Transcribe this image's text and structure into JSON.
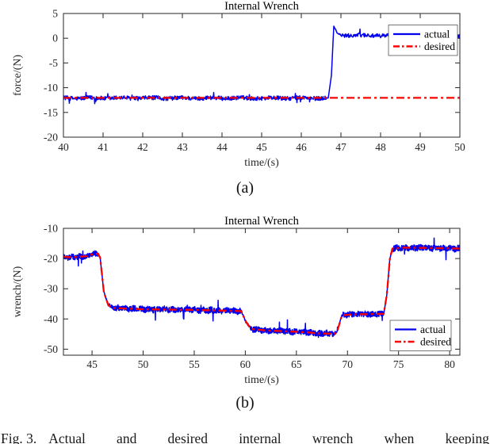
{
  "page": {
    "caption_label": "Fig. 3.",
    "caption_text": "Actual and desired internal wrench when keeping",
    "sublabel_a": "(a)",
    "sublabel_b": "(b)"
  },
  "colors": {
    "actual": "#0000EE",
    "desired": "#FF0000",
    "axis": "#262626",
    "title_text": "#000000",
    "background": "#FFFFFF"
  },
  "chart_data": [
    {
      "type": "line",
      "title": "Internal Wrench",
      "xlabel": "time/(s)",
      "ylabel": "force/(N)",
      "xlim": [
        40,
        50
      ],
      "ylim": [
        -20,
        5
      ],
      "xticks": [
        40,
        41,
        42,
        43,
        44,
        45,
        46,
        47,
        48,
        49,
        50
      ],
      "yticks": [
        5,
        0,
        -5,
        -10,
        -15,
        -20
      ],
      "grid": false,
      "legend": {
        "position": "top-right",
        "entries": [
          {
            "label": "actual",
            "color": "#0000EE",
            "style": "solid"
          },
          {
            "label": "desired",
            "color": "#FF0000",
            "style": "dash-dot"
          }
        ]
      },
      "series": [
        {
          "name": "actual",
          "color": "#0000EE",
          "style": "solid",
          "noise": 0.42,
          "seed": 12345,
          "profile": [
            [
              40,
              -12.1
            ],
            [
              46.68,
              -12.1
            ],
            [
              46.76,
              -7.5
            ],
            [
              46.82,
              2.45
            ],
            [
              46.9,
              1.1
            ],
            [
              47.0,
              0.6
            ],
            [
              48.5,
              0.5
            ],
            [
              50,
              0.4
            ]
          ]
        },
        {
          "name": "desired",
          "color": "#FF0000",
          "style": "dash-dot",
          "noise": 0,
          "seed": 1,
          "profile": [
            [
              40,
              -12.05
            ],
            [
              50,
              -12.05
            ]
          ]
        }
      ]
    },
    {
      "type": "line",
      "title": "Internal Wrench",
      "xlabel": "time/(s)",
      "ylabel": "wrench/(N)",
      "xlim": [
        42.2,
        81
      ],
      "ylim": [
        -52,
        -10
      ],
      "xticks": [
        45,
        50,
        55,
        60,
        65,
        70,
        75,
        80
      ],
      "yticks": [
        -10,
        -20,
        -30,
        -40,
        -50
      ],
      "grid": false,
      "legend": {
        "position": "bottom-right",
        "entries": [
          {
            "label": "actual",
            "color": "#0000EE",
            "style": "solid"
          },
          {
            "label": "desired",
            "color": "#FF0000",
            "style": "dash-dot"
          }
        ]
      },
      "series": [
        {
          "name": "actual",
          "color": "#0000EE",
          "style": "solid",
          "noise": 1.0,
          "seed": 67890,
          "profile": [
            [
              42.2,
              -19.4
            ],
            [
              43,
              -19.6
            ],
            [
              44.5,
              -19.2
            ],
            [
              45.15,
              -18.5
            ],
            [
              45.6,
              -18.4
            ],
            [
              45.8,
              -19.8
            ],
            [
              46.15,
              -31
            ],
            [
              46.6,
              -35.5
            ],
            [
              47.2,
              -36.4
            ],
            [
              50,
              -36.8
            ],
            [
              55,
              -37.0
            ],
            [
              59.6,
              -37.4
            ],
            [
              60.05,
              -40.8
            ],
            [
              60.55,
              -43.3
            ],
            [
              62,
              -43.8
            ],
            [
              64,
              -44.1
            ],
            [
              66,
              -44.4
            ],
            [
              67.3,
              -44.8
            ],
            [
              68.8,
              -44.9
            ],
            [
              69.05,
              -43.5
            ],
            [
              69.45,
              -38.8
            ],
            [
              70.5,
              -38.5
            ],
            [
              72,
              -38.4
            ],
            [
              73.55,
              -38.3
            ],
            [
              73.85,
              -32
            ],
            [
              74.15,
              -20
            ],
            [
              74.4,
              -16.7
            ],
            [
              75.5,
              -16.4
            ],
            [
              78,
              -16.5
            ],
            [
              81,
              -16.7
            ]
          ]
        },
        {
          "name": "desired",
          "color": "#FF0000",
          "style": "dash-dot",
          "noise": 0,
          "seed": 2,
          "profile": [
            [
              42.2,
              -19.4
            ],
            [
              43,
              -19.6
            ],
            [
              44.5,
              -19.2
            ],
            [
              45.15,
              -18.5
            ],
            [
              45.6,
              -18.4
            ],
            [
              45.8,
              -19.8
            ],
            [
              46.15,
              -31
            ],
            [
              46.6,
              -35.5
            ],
            [
              47.2,
              -36.4
            ],
            [
              50,
              -36.8
            ],
            [
              55,
              -37.0
            ],
            [
              59.6,
              -37.4
            ],
            [
              60.05,
              -40.8
            ],
            [
              60.55,
              -43.3
            ],
            [
              62,
              -43.8
            ],
            [
              64,
              -44.1
            ],
            [
              66,
              -44.4
            ],
            [
              67.3,
              -44.8
            ],
            [
              68.8,
              -44.9
            ],
            [
              69.05,
              -43.5
            ],
            [
              69.45,
              -38.8
            ],
            [
              70.5,
              -38.5
            ],
            [
              72,
              -38.4
            ],
            [
              73.55,
              -38.3
            ],
            [
              73.85,
              -32
            ],
            [
              74.15,
              -20
            ],
            [
              74.4,
              -16.7
            ],
            [
              75.5,
              -16.4
            ],
            [
              78,
              -16.5
            ],
            [
              81,
              -16.7
            ]
          ]
        }
      ]
    }
  ]
}
